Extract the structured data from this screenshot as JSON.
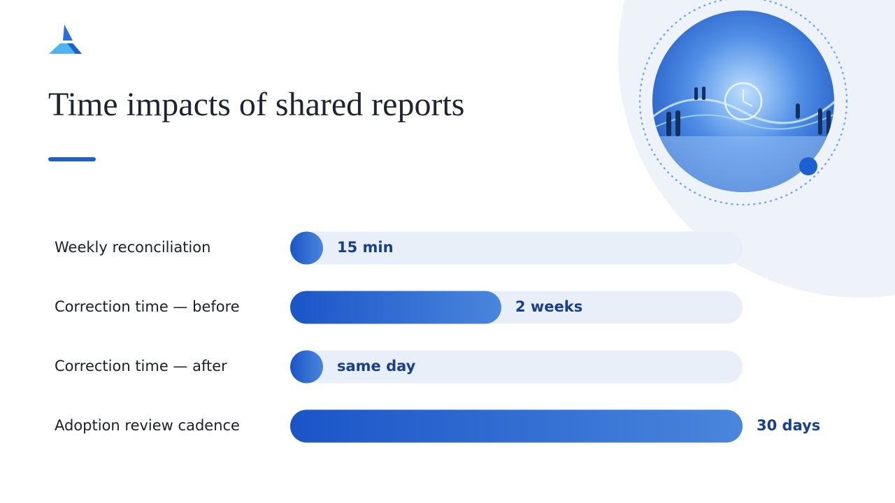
{
  "chart_data": {
    "type": "bar",
    "orientation": "horizontal",
    "title": "Time impacts of shared reports",
    "categories": [
      "Weekly reconciliation",
      "Correction time — before",
      "Correction time — after",
      "Adoption review cadence"
    ],
    "values": [
      0.0104,
      14,
      1,
      30
    ],
    "value_labels": [
      "15 min",
      "2 weeks",
      "same day",
      "30 days"
    ],
    "xlim": [
      0,
      30
    ],
    "color": "#1d5fd0"
  }
}
